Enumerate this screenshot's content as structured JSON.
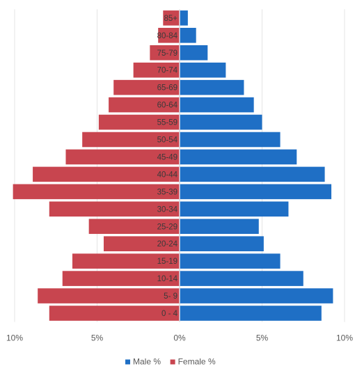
{
  "chart_data": {
    "type": "bar",
    "orientation": "horizontal",
    "layout": "population-pyramid",
    "categories": [
      "0 - 4",
      "5- 9",
      "10-14",
      "15-19",
      "20-24",
      "25-29",
      "30-34",
      "35-39",
      "40-44",
      "45-49",
      "50-54",
      "55-59",
      "60-64",
      "65-69",
      "70-74",
      "75-79",
      "80-84",
      "85+"
    ],
    "series": [
      {
        "name": "Male %",
        "color": "#1f6fc5",
        "side": "right",
        "values": [
          8.6,
          9.3,
          7.5,
          6.1,
          5.1,
          4.8,
          6.6,
          9.2,
          8.8,
          7.1,
          6.1,
          5.0,
          4.5,
          3.9,
          2.8,
          1.7,
          1.0,
          0.5
        ]
      },
      {
        "name": "Female %",
        "color": "#c8454f",
        "side": "left",
        "values": [
          7.9,
          8.6,
          7.1,
          6.5,
          4.6,
          5.5,
          7.9,
          10.1,
          8.9,
          6.9,
          5.9,
          4.9,
          4.3,
          4.0,
          2.8,
          1.8,
          1.3,
          1.0
        ]
      }
    ],
    "xaxis": {
      "range": [
        -10,
        10
      ],
      "ticks": [
        -10,
        -5,
        0,
        5,
        10
      ],
      "tick_labels": [
        "10%",
        "5%",
        "0%",
        "5%",
        "10%"
      ]
    },
    "title": "",
    "xlabel": "",
    "ylabel": "",
    "grid": true,
    "legend": "bottom-center"
  }
}
